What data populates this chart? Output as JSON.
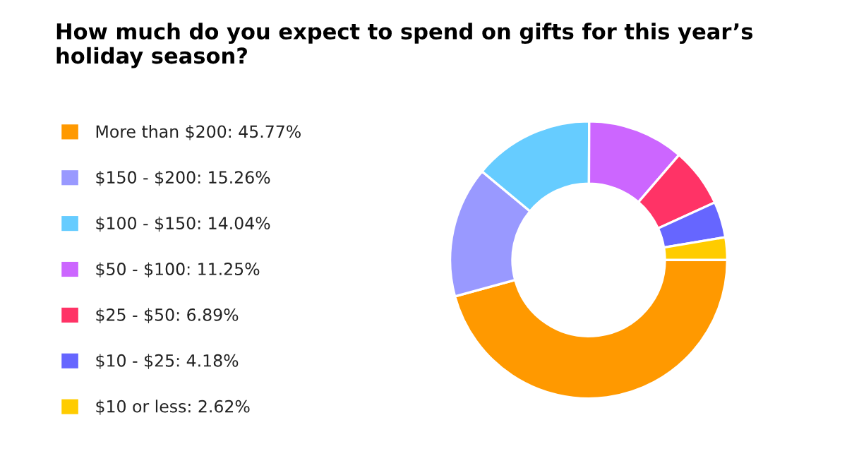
{
  "chart_data": {
    "type": "donut",
    "title": "How much do you expect to spend on gifts for this year’s holiday season?",
    "categories": [
      "More than $200",
      "$150 - $200",
      "$100 - $150",
      "$50 - $100",
      "$25 - $50",
      "$10 - $25",
      "$10 or less"
    ],
    "values": [
      45.77,
      15.26,
      14.04,
      11.25,
      6.89,
      4.18,
      2.62
    ],
    "value_labels": [
      "45.77%",
      "15.26%",
      "14.04%",
      "11.25%",
      "6.89%",
      "4.18%",
      "2.62%"
    ],
    "colors": [
      "#ff9900",
      "#9999ff",
      "#66ccff",
      "#cc66ff",
      "#ff3366",
      "#6666ff",
      "#ffcc00"
    ],
    "legend": "left"
  }
}
